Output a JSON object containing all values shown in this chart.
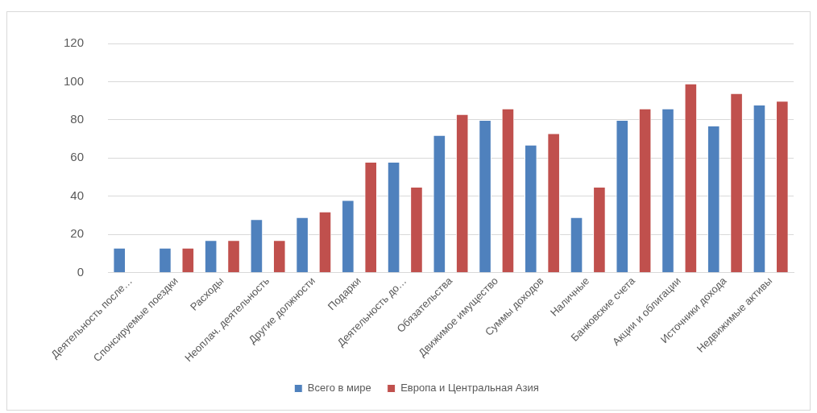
{
  "chart_data": {
    "type": "bar",
    "categories": [
      "Деятельность после…",
      "Спонсируемые поездки",
      "Расходы",
      "Неоплач. деятельность",
      "Другие должности",
      "Подарки",
      "Деятельность до…",
      "Обязательства",
      "Движимое имущество",
      "Суммы доходов",
      "Наличные",
      "Банковские счета",
      "Акции и облигации",
      "Источники дохода",
      "Недвижимые активы"
    ],
    "series": [
      {
        "name": "Всего в мире",
        "color": "#4f81bd",
        "values": [
          13,
          13,
          17,
          28,
          29,
          38,
          58,
          72,
          80,
          67,
          29,
          80,
          86,
          77,
          88
        ]
      },
      {
        "name": "Европа и Центральная Азия",
        "color": "#c0504d",
        "values": [
          0,
          13,
          17,
          17,
          32,
          58,
          45,
          83,
          86,
          73,
          45,
          86,
          99,
          94,
          90
        ]
      }
    ],
    "ylim": [
      0,
      120
    ],
    "yticks": [
      0,
      20,
      40,
      60,
      80,
      100,
      120
    ],
    "grid": "y",
    "legend": "bottom"
  }
}
